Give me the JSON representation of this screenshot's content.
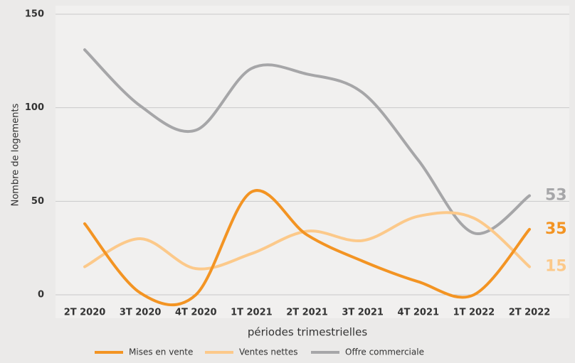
{
  "chart_data": {
    "type": "line",
    "y_label": "Nombre de logements",
    "x_label": "périodes trimestrielles",
    "categories": [
      "2T 2020",
      "3T 2020",
      "4T 2020",
      "1T 2021",
      "2T 2021",
      "3T 2021",
      "4T 2021",
      "1T 2022",
      "2T 2022"
    ],
    "series": [
      {
        "name": "Mises en vente",
        "color": "#f39423",
        "values": [
          38,
          1,
          0,
          55,
          32,
          18,
          7,
          0,
          35
        ]
      },
      {
        "name": "Ventes nettes",
        "color": "#fcc98a",
        "values": [
          15,
          30,
          14,
          22,
          34,
          29,
          42,
          41,
          15
        ]
      },
      {
        "name": "Offre commerciale",
        "color": "#a6a6a8",
        "values": [
          131,
          101,
          88,
          121,
          118,
          108,
          72,
          33,
          53
        ]
      }
    ],
    "ylim": [
      0,
      150
    ],
    "yticks": [
      0,
      50,
      100,
      150
    ],
    "grid": true,
    "smooth": true,
    "end_labels": true,
    "legend": "bottom"
  }
}
